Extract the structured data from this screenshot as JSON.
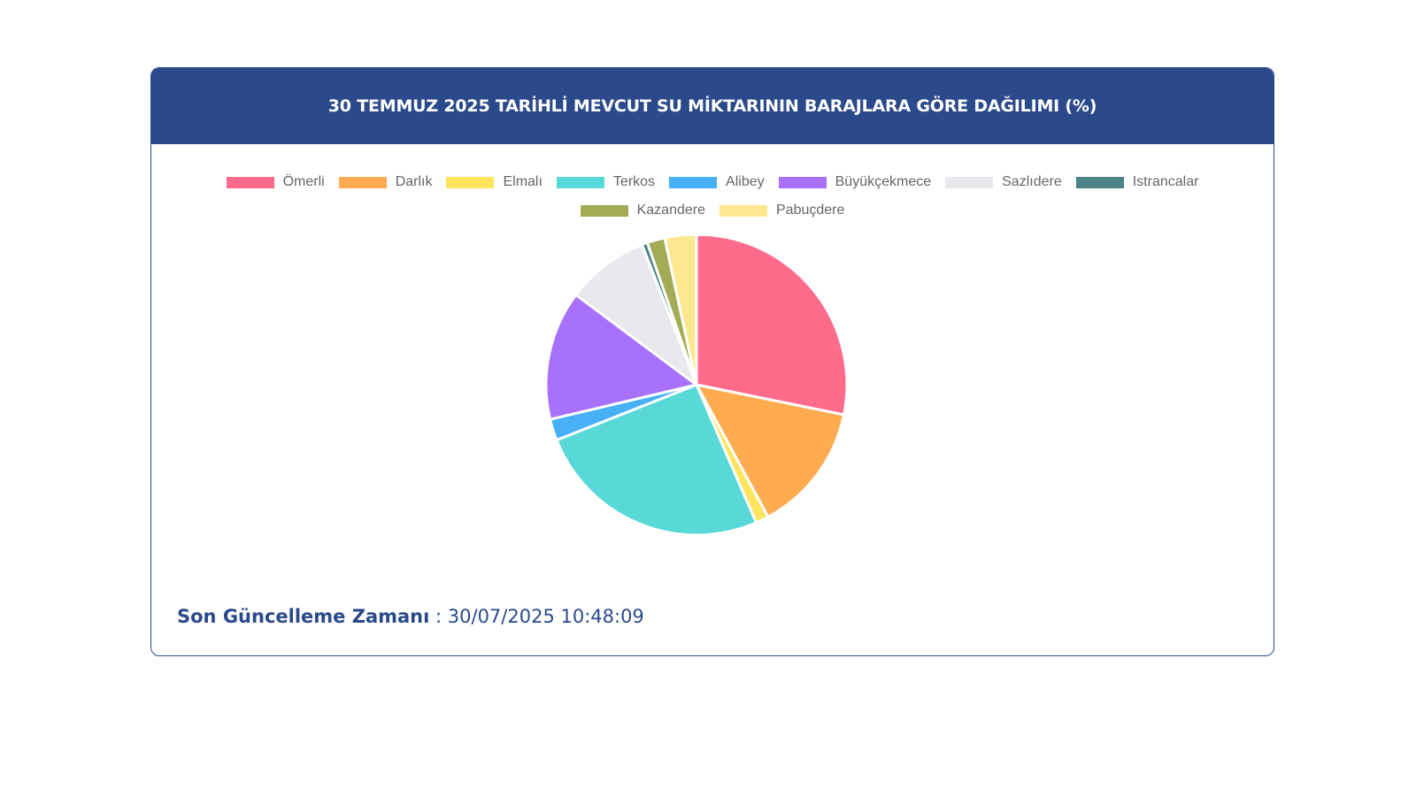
{
  "card": {
    "title": "30 TEMMUZ 2025 TARİHLİ MEVCUT SU MİKTARININ BARAJLARA GÖRE DAĞILIMI (%)"
  },
  "footer": {
    "label": "Son Güncelleme Zamanı",
    "separator": " : ",
    "value": "30/07/2025 10:48:09"
  },
  "colors": {
    "header_bg": "#2b4a8b",
    "border": "#2b4a8b"
  },
  "chart_data": {
    "type": "pie",
    "title": "30 TEMMUZ 2025 TARİHLİ MEVCUT SU MİKTARININ BARAJLARA GÖRE DAĞILIMI (%)",
    "legend_position": "top",
    "categories": [
      "Ömerli",
      "Darlık",
      "Elmalı",
      "Terkos",
      "Alibey",
      "Büyükçekmece",
      "Sazlıdere",
      "Istrancalar",
      "Kazandere",
      "Pabuçdere"
    ],
    "values": [
      28.2,
      13.9,
      1.4,
      25.5,
      2.3,
      13.9,
      8.9,
      0.6,
      1.9,
      3.4
    ],
    "colors": [
      "#ff6b8b",
      "#ffab4f",
      "#ffe45c",
      "#59d8d8",
      "#47b0f7",
      "#a871fb",
      "#e8e9ec",
      "#4a8487",
      "#a3ab54",
      "#fde78e"
    ]
  }
}
